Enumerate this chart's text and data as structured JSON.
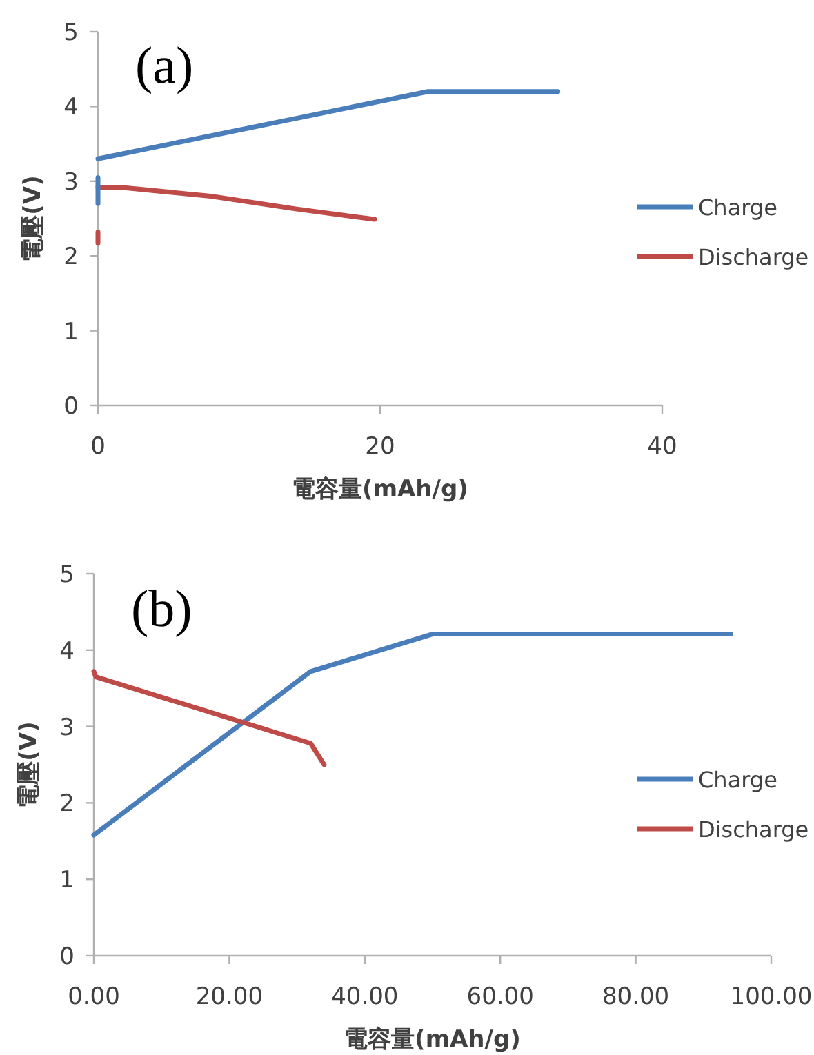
{
  "chart_data": [
    {
      "type": "line",
      "xlabel": "電容量(mAh/g)",
      "ylabel": "電壓(V)",
      "annotations": [
        "(a)"
      ],
      "legend": "right",
      "grid": false,
      "xlim": [
        0,
        40
      ],
      "xticks": [
        0,
        20,
        40
      ],
      "ylim": [
        0,
        5
      ],
      "yticks": [
        0,
        1,
        2,
        3,
        4,
        5
      ],
      "series": [
        {
          "name": "Charge",
          "color": "#4a7ebb",
          "x": [
            0,
            23.4,
            32.6
          ],
          "values": [
            3.3,
            4.2,
            4.2
          ]
        },
        {
          "name": "Discharge",
          "color": "#be4b48",
          "x": [
            0,
            1.5,
            8,
            14,
            19.6
          ],
          "values": [
            2.92,
            2.92,
            2.8,
            2.63,
            2.49
          ]
        },
        {
          "color": "#4a7ebb",
          "x": [
            0,
            0
          ],
          "values": [
            2.7,
            3.05
          ]
        },
        {
          "color": "#be4b48",
          "x": [
            0,
            0
          ],
          "values": [
            2.17,
            2.32
          ]
        }
      ]
    },
    {
      "type": "line",
      "xlabel": "電容量(mAh/g)",
      "ylabel": "電壓(V)",
      "annotations": [
        "(b)"
      ],
      "legend": "right",
      "grid": false,
      "xlim": [
        0,
        100
      ],
      "xticks": [
        {
          "value": 0,
          "label": "0.00"
        },
        {
          "value": 20,
          "label": "20.00"
        },
        {
          "value": 40,
          "label": "40.00"
        },
        {
          "value": 60,
          "label": "60.00"
        },
        {
          "value": 80,
          "label": "80.00"
        },
        {
          "value": 100,
          "label": "100.00"
        }
      ],
      "ylim": [
        0,
        5
      ],
      "yticks": [
        0,
        1,
        2,
        3,
        4,
        5
      ],
      "series": [
        {
          "name": "Charge",
          "color": "#4a7ebb",
          "x": [
            0,
            32,
            50,
            94
          ],
          "values": [
            1.58,
            3.72,
            4.21,
            4.21
          ]
        },
        {
          "name": "Discharge",
          "color": "#be4b48",
          "x": [
            0,
            0.3,
            32,
            34
          ],
          "values": [
            3.72,
            3.65,
            2.78,
            2.5
          ]
        }
      ]
    }
  ]
}
